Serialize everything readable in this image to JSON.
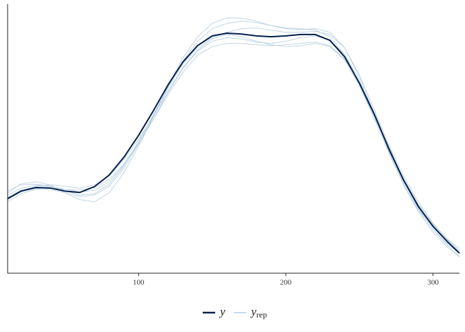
{
  "chart_data": {
    "type": "density",
    "x": [
      11,
      20,
      30,
      40,
      50,
      60,
      70,
      80,
      90,
      100,
      110,
      120,
      130,
      140,
      150,
      160,
      170,
      180,
      190,
      200,
      210,
      220,
      230,
      240,
      250,
      260,
      270,
      280,
      290,
      300,
      310,
      318
    ],
    "series": [
      {
        "name": "y",
        "color": "#011f4b",
        "values": [
          0.00167,
          0.00184,
          0.00192,
          0.00191,
          0.00184,
          0.00181,
          0.00194,
          0.0022,
          0.0026,
          0.00309,
          0.00364,
          0.00422,
          0.00473,
          0.0051,
          0.00532,
          0.00538,
          0.00536,
          0.00532,
          0.0053,
          0.00532,
          0.00535,
          0.00535,
          0.00522,
          0.00485,
          0.00426,
          0.00357,
          0.00279,
          0.00209,
          0.0015,
          0.00105,
          0.0007,
          0.00045
        ]
      },
      {
        "name": "y",
        "subscript": "rep",
        "color": "#b3cde0",
        "values": [
          [
            0.00175,
            0.0019,
            0.00198,
            0.00195,
            0.00185,
            0.00175,
            0.00178,
            0.002,
            0.0024,
            0.00295,
            0.00355,
            0.00418,
            0.00475,
            0.0052,
            0.00548,
            0.0056,
            0.00565,
            0.00562,
            0.00555,
            0.0055,
            0.00548,
            0.00545,
            0.0053,
            0.0049,
            0.00425,
            0.0035,
            0.0027,
            0.002,
            0.00142,
            0.00098,
            0.00065,
            0.00045
          ],
          [
            0.0016,
            0.00178,
            0.00188,
            0.0019,
            0.00188,
            0.00186,
            0.00192,
            0.0021,
            0.00245,
            0.00292,
            0.00345,
            0.004,
            0.0045,
            0.00488,
            0.00508,
            0.00515,
            0.00515,
            0.00512,
            0.0051,
            0.00512,
            0.00515,
            0.00518,
            0.0051,
            0.0048,
            0.00428,
            0.00362,
            0.00288,
            0.00218,
            0.0016,
            0.00112,
            0.00075,
            0.0005
          ],
          [
            0.0018,
            0.002,
            0.00205,
            0.00198,
            0.0018,
            0.00165,
            0.0016,
            0.0018,
            0.00225,
            0.00285,
            0.0035,
            0.00415,
            0.00468,
            0.00505,
            0.00528,
            0.0054,
            0.00548,
            0.0055,
            0.00545,
            0.0054,
            0.0054,
            0.00542,
            0.00535,
            0.00505,
            0.00445,
            0.00368,
            0.00285,
            0.00208,
            0.00145,
            0.00098,
            0.00062,
            0.00038
          ],
          [
            0.0017,
            0.00185,
            0.00195,
            0.00198,
            0.00195,
            0.0019,
            0.00198,
            0.00218,
            0.00255,
            0.003,
            0.00352,
            0.00408,
            0.0046,
            0.005,
            0.00525,
            0.00535,
            0.0053,
            0.0052,
            0.00512,
            0.00508,
            0.0051,
            0.00515,
            0.00508,
            0.00478,
            0.0042,
            0.00348,
            0.00272,
            0.00205,
            0.0015,
            0.00108,
            0.00076,
            0.00055
          ],
          [
            0.00165,
            0.00182,
            0.0019,
            0.00188,
            0.0018,
            0.00172,
            0.00175,
            0.00195,
            0.00235,
            0.0029,
            0.00352,
            0.0042,
            0.00482,
            0.0053,
            0.0056,
            0.00572,
            0.00572,
            0.00565,
            0.00555,
            0.00548,
            0.00546,
            0.00548,
            0.0054,
            0.00505,
            0.0044,
            0.0036,
            0.00275,
            0.00198,
            0.00138,
            0.00092,
            0.00058,
            0.00036
          ],
          [
            0.00185,
            0.00198,
            0.002,
            0.00195,
            0.00188,
            0.00182,
            0.00186,
            0.00205,
            0.00242,
            0.0029,
            0.00345,
            0.00405,
            0.00458,
            0.00498,
            0.0052,
            0.00528,
            0.00525,
            0.00518,
            0.00515,
            0.0052,
            0.00528,
            0.00532,
            0.00522,
            0.0049,
            0.00432,
            0.00358,
            0.0028,
            0.00212,
            0.00155,
            0.0011,
            0.00074,
            0.0005
          ]
        ]
      }
    ],
    "xlim": [
      11,
      318
    ],
    "xticks": [
      100,
      200,
      300
    ],
    "ylim": [
      0,
      0.006
    ],
    "legend": "bottom"
  }
}
